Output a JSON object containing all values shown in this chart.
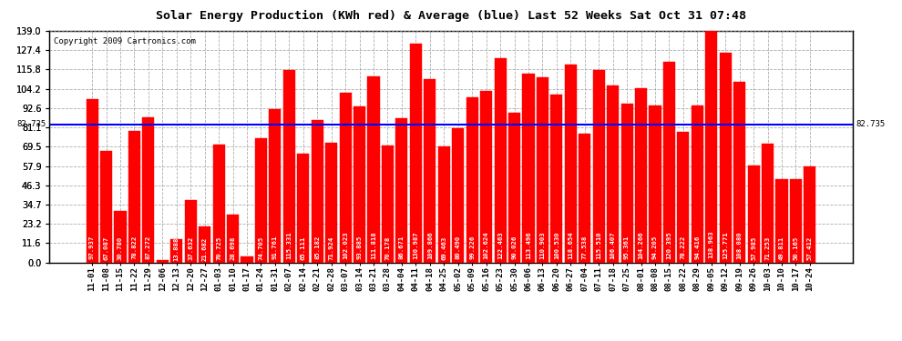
{
  "title": "Solar Energy Production (KWh red) & Average (blue) Last 52 Weeks Sat Oct 31 07:48",
  "copyright": "Copyright 2009 Cartronics.com",
  "average": 82.735,
  "ylim": [
    0,
    139.0
  ],
  "yticks": [
    0.0,
    11.6,
    23.2,
    34.7,
    46.3,
    57.9,
    69.5,
    81.1,
    92.6,
    104.2,
    115.8,
    127.4,
    139.0
  ],
  "bar_color": "#FF0000",
  "avg_line_color": "#0000FF",
  "background_color": "#FFFFFF",
  "grid_color": "#999999",
  "categories": [
    "11-01",
    "11-08",
    "11-15",
    "11-22",
    "11-29",
    "12-06",
    "12-13",
    "12-20",
    "12-27",
    "01-03",
    "01-10",
    "01-17",
    "01-24",
    "01-31",
    "02-07",
    "02-14",
    "02-21",
    "02-28",
    "03-07",
    "03-14",
    "03-21",
    "03-28",
    "04-04",
    "04-11",
    "04-18",
    "04-25",
    "05-02",
    "05-09",
    "05-16",
    "05-23",
    "05-30",
    "06-06",
    "06-13",
    "06-20",
    "06-27",
    "07-04",
    "07-11",
    "07-18",
    "07-25",
    "08-01",
    "08-08",
    "08-15",
    "08-22",
    "08-29",
    "09-05",
    "09-12",
    "09-19",
    "09-26",
    "10-03",
    "10-10",
    "10-17",
    "10-24"
  ],
  "values": [
    97.937,
    67.087,
    30.78,
    78.822,
    87.272,
    1.65,
    13.888,
    37.632,
    21.682,
    70.725,
    28.698,
    3.45,
    74.705,
    91.761,
    115.331,
    65.111,
    85.182,
    71.924,
    102.023,
    93.885,
    111.818,
    70.178,
    86.671,
    130.987,
    109.866,
    69.463,
    80.49,
    99.226,
    102.624,
    122.463,
    90.026,
    113.496,
    110.903,
    100.53,
    118.654,
    77.538,
    115.51,
    106.407,
    95.361,
    104.266,
    94.205,
    120.395,
    78.222,
    94.416,
    138.963,
    125.771,
    108.08,
    57.985,
    71.253,
    49.811,
    50.165,
    57.412
  ],
  "title_fontsize": 9.5,
  "copyright_fontsize": 6.5,
  "value_fontsize": 5.2,
  "tick_fontsize": 7.0,
  "xtick_fontsize": 6.5
}
